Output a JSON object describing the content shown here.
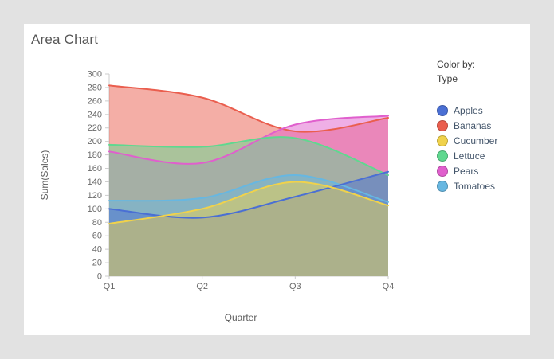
{
  "card": {
    "title": "Area Chart"
  },
  "legend": {
    "title_line1": "Color by:",
    "title_line2": "Type",
    "items": [
      {
        "label": "Apples",
        "color": "#4a6fd4"
      },
      {
        "label": "Bananas",
        "color": "#ea5e4e"
      },
      {
        "label": "Cucumber",
        "color": "#f0d24b"
      },
      {
        "label": "Lettuce",
        "color": "#5fd88f"
      },
      {
        "label": "Pears",
        "color": "#e05fcd"
      },
      {
        "label": "Tomatoes",
        "color": "#67b7e1"
      }
    ]
  },
  "chart_data": {
    "type": "area",
    "overlapping": true,
    "title": "Area Chart",
    "xlabel": "Quarter",
    "ylabel": "Sum(Sales)",
    "categories": [
      "Q1",
      "Q2",
      "Q3",
      "Q4"
    ],
    "series": [
      {
        "name": "Apples",
        "color": "#4a6fd4",
        "values": [
          100,
          87,
          118,
          155
        ]
      },
      {
        "name": "Bananas",
        "color": "#ea5e4e",
        "values": [
          283,
          265,
          215,
          235
        ]
      },
      {
        "name": "Cucumber",
        "color": "#f0d24b",
        "values": [
          78,
          100,
          140,
          105
        ]
      },
      {
        "name": "Lettuce",
        "color": "#5fd88f",
        "values": [
          195,
          192,
          205,
          150
        ]
      },
      {
        "name": "Pears",
        "color": "#e05fcd",
        "values": [
          185,
          168,
          225,
          238
        ]
      },
      {
        "name": "Tomatoes",
        "color": "#67b7e1",
        "values": [
          112,
          116,
          150,
          110
        ]
      }
    ],
    "draw_order": [
      "Bananas",
      "Pears",
      "Lettuce",
      "Tomatoes",
      "Apples",
      "Cucumber"
    ],
    "ylim": [
      0,
      300
    ],
    "y_tick_step": 20,
    "grid": false,
    "legend_position": "right",
    "fill_opacity": 0.5
  },
  "colors": {
    "page_bg": "#e2e2e2",
    "card_bg": "#ffffff",
    "axis_line": "#cccccc",
    "tick_text": "#6b6b6b",
    "axis_title_text": "#5c5c5c",
    "title_text": "#575757",
    "legend_text": "#44566b"
  }
}
